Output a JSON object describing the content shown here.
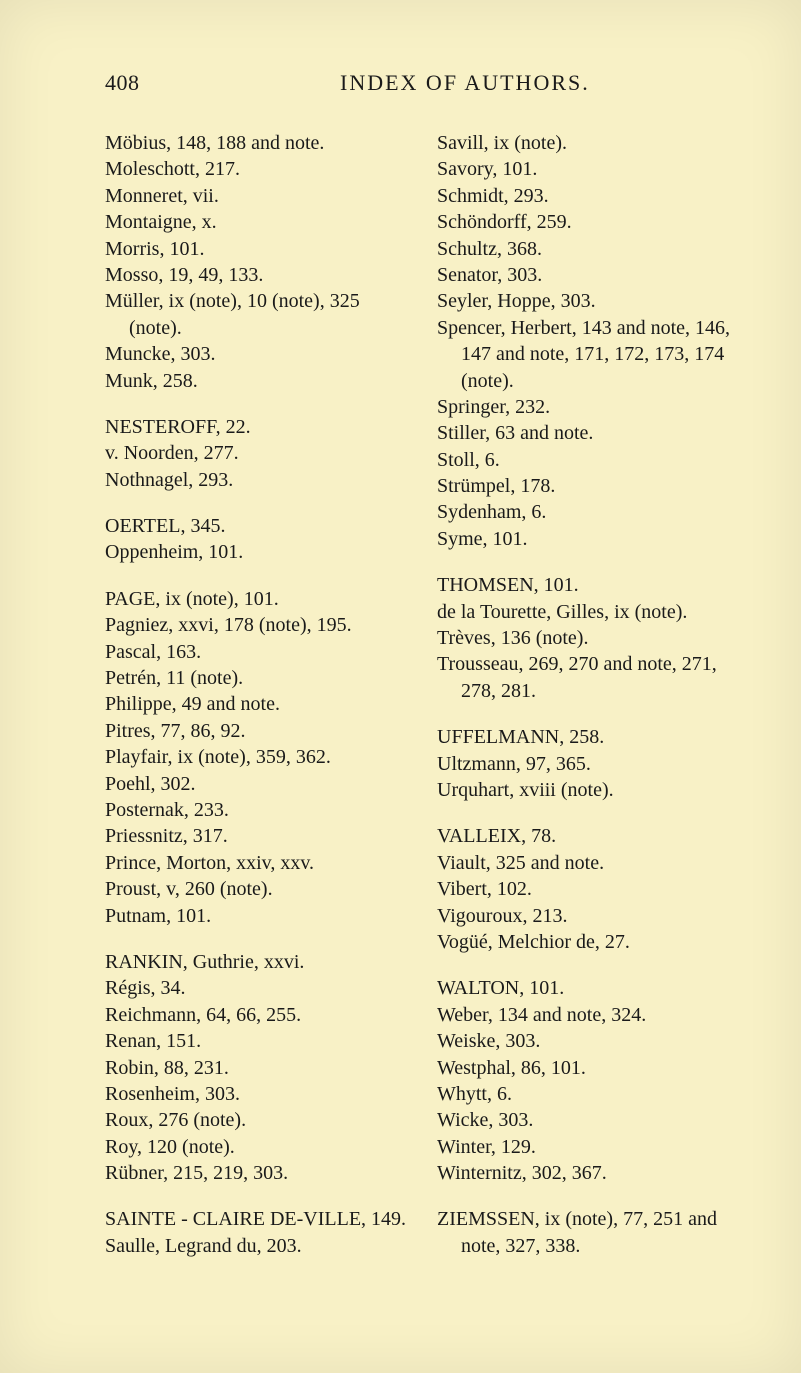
{
  "page_number": "408",
  "running_title": "INDEX OF AUTHORS.",
  "colors": {
    "background": "#f8f1c6",
    "text": "#1a1a1a"
  },
  "typography": {
    "body_fontsize_pt": 15,
    "header_fontsize_pt": 16,
    "font_family": "Times New Roman"
  },
  "left_column": [
    {
      "type": "entry",
      "text": "Möbius, 148, 188 and note."
    },
    {
      "type": "entry",
      "text": "Moleschott, 217."
    },
    {
      "type": "entry",
      "text": "Monneret, vii."
    },
    {
      "type": "entry",
      "text": "Montaigne, x."
    },
    {
      "type": "entry",
      "text": "Morris, 101."
    },
    {
      "type": "entry",
      "text": "Mosso, 19, 49, 133."
    },
    {
      "type": "entry",
      "text": "Müller, ix (note), 10 (note), 325 (note)."
    },
    {
      "type": "entry",
      "text": "Muncke, 303."
    },
    {
      "type": "entry",
      "text": "Munk, 258."
    },
    {
      "type": "gap"
    },
    {
      "type": "entry",
      "text": "NESTEROFF, 22."
    },
    {
      "type": "entry",
      "text": "v. Noorden, 277."
    },
    {
      "type": "entry",
      "text": "Nothnagel, 293."
    },
    {
      "type": "gap"
    },
    {
      "type": "entry",
      "text": "OERTEL, 345."
    },
    {
      "type": "entry",
      "text": "Oppenheim, 101."
    },
    {
      "type": "gap"
    },
    {
      "type": "entry",
      "text": "PAGE, ix (note), 101."
    },
    {
      "type": "entry",
      "text": "Pagniez, xxvi, 178 (note), 195."
    },
    {
      "type": "entry",
      "text": "Pascal, 163."
    },
    {
      "type": "entry",
      "text": "Petrén, 11 (note)."
    },
    {
      "type": "entry",
      "text": "Philippe, 49 and note."
    },
    {
      "type": "entry",
      "text": "Pitres, 77, 86, 92."
    },
    {
      "type": "entry",
      "text": "Playfair, ix (note), 359, 362."
    },
    {
      "type": "entry",
      "text": "Poehl, 302."
    },
    {
      "type": "entry",
      "text": "Posternak, 233."
    },
    {
      "type": "entry",
      "text": "Priessnitz, 317."
    },
    {
      "type": "entry",
      "text": "Prince, Morton, xxiv, xxv."
    },
    {
      "type": "entry",
      "text": "Proust, v, 260 (note)."
    },
    {
      "type": "entry",
      "text": "Putnam, 101."
    },
    {
      "type": "gap"
    },
    {
      "type": "entry",
      "text": "RANKIN, Guthrie, xxvi."
    },
    {
      "type": "entry",
      "text": "Régis, 34."
    },
    {
      "type": "entry",
      "text": "Reichmann, 64, 66, 255."
    },
    {
      "type": "entry",
      "text": "Renan, 151."
    },
    {
      "type": "entry",
      "text": "Robin, 88, 231."
    },
    {
      "type": "entry",
      "text": "Rosenheim, 303."
    },
    {
      "type": "entry",
      "text": "Roux, 276 (note)."
    },
    {
      "type": "entry",
      "text": "Roy, 120 (note)."
    },
    {
      "type": "entry",
      "text": "Rübner, 215, 219, 303."
    },
    {
      "type": "gap"
    },
    {
      "type": "entry",
      "text": "SAINTE - CLAIRE DE-VILLE, 149."
    },
    {
      "type": "entry",
      "text": "Saulle, Legrand du, 203."
    }
  ],
  "right_column": [
    {
      "type": "entry",
      "text": "Savill, ix (note)."
    },
    {
      "type": "entry",
      "text": "Savory, 101."
    },
    {
      "type": "entry",
      "text": "Schmidt, 293."
    },
    {
      "type": "entry",
      "text": "Schöndorff, 259."
    },
    {
      "type": "entry",
      "text": "Schultz, 368."
    },
    {
      "type": "entry",
      "text": "Senator, 303."
    },
    {
      "type": "entry",
      "text": "Seyler, Hoppe, 303."
    },
    {
      "type": "entry",
      "text": "Spencer, Herbert, 143 and note, 146, 147 and note, 171, 172, 173, 174 (note)."
    },
    {
      "type": "entry",
      "text": "Springer, 232."
    },
    {
      "type": "entry",
      "text": "Stiller, 63 and note."
    },
    {
      "type": "entry",
      "text": "Stoll, 6."
    },
    {
      "type": "entry",
      "text": "Strümpel, 178."
    },
    {
      "type": "entry",
      "text": "Sydenham, 6."
    },
    {
      "type": "entry",
      "text": "Syme, 101."
    },
    {
      "type": "gap"
    },
    {
      "type": "entry",
      "text": "THOMSEN, 101."
    },
    {
      "type": "entry",
      "text": "de la Tourette, Gilles, ix (note)."
    },
    {
      "type": "entry",
      "text": "Trèves, 136 (note)."
    },
    {
      "type": "entry",
      "text": "Trousseau, 269, 270 and note, 271, 278, 281."
    },
    {
      "type": "gap"
    },
    {
      "type": "entry",
      "text": "UFFELMANN, 258."
    },
    {
      "type": "entry",
      "text": "Ultzmann, 97, 365."
    },
    {
      "type": "entry",
      "text": "Urquhart, xviii (note)."
    },
    {
      "type": "gap"
    },
    {
      "type": "entry",
      "text": "VALLEIX, 78."
    },
    {
      "type": "entry",
      "text": "Viault, 325 and note."
    },
    {
      "type": "entry",
      "text": "Vibert, 102."
    },
    {
      "type": "entry",
      "text": "Vigouroux, 213."
    },
    {
      "type": "entry",
      "text": "Vogüé, Melchior de, 27."
    },
    {
      "type": "gap"
    },
    {
      "type": "entry",
      "text": "WALTON, 101."
    },
    {
      "type": "entry",
      "text": "Weber, 134 and note, 324."
    },
    {
      "type": "entry",
      "text": "Weiske, 303."
    },
    {
      "type": "entry",
      "text": "Westphal, 86, 101."
    },
    {
      "type": "entry",
      "text": "Whytt, 6."
    },
    {
      "type": "entry",
      "text": "Wicke, 303."
    },
    {
      "type": "entry",
      "text": "Winter, 129."
    },
    {
      "type": "entry",
      "text": "Winternitz, 302, 367."
    },
    {
      "type": "gap"
    },
    {
      "type": "entry",
      "text": "ZIEMSSEN, ix (note), 77, 251 and note, 327, 338."
    }
  ]
}
